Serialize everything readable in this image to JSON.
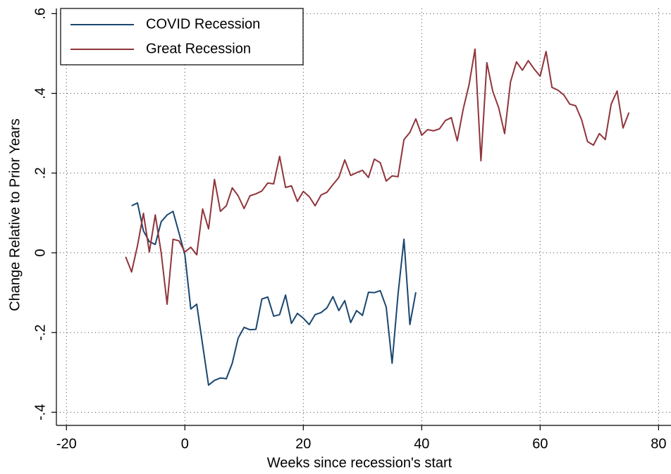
{
  "chart_data": {
    "type": "line",
    "xlabel": "Weeks since recession's start",
    "ylabel": "Change Relative to Prior Years",
    "xlim": [
      -21.7,
      82.1
    ],
    "ylim": [
      -0.433,
      0.613
    ],
    "xticks": [
      -20,
      0,
      20,
      40,
      60,
      80
    ],
    "yticks": [
      {
        "value": 0.6,
        "label": ".6"
      },
      {
        "value": 0.4,
        "label": ".4"
      },
      {
        "value": 0.2,
        "label": ".2"
      },
      0,
      {
        "value": -0.2,
        "label": "-.2"
      },
      {
        "value": -0.4,
        "label": "-.4"
      }
    ],
    "grid": true,
    "legend": "top-left",
    "series": [
      {
        "name": "COVID Recession",
        "color": "#1a476f",
        "x": [
          -9,
          -8,
          -7,
          -6,
          -5,
          -4,
          -3,
          -2,
          -1,
          0,
          1,
          2,
          3,
          4,
          5,
          6,
          7,
          8,
          9,
          10,
          11,
          12,
          13,
          14,
          15,
          16,
          17,
          18,
          19,
          20,
          21,
          22,
          23,
          24,
          25,
          26,
          27,
          28,
          29,
          30,
          31,
          32,
          33,
          34,
          35,
          36,
          37,
          38,
          39
        ],
        "values": [
          0.118,
          0.125,
          0.055,
          0.028,
          0.021,
          0.078,
          0.095,
          0.104,
          0.05,
          -0.005,
          -0.141,
          -0.129,
          -0.231,
          -0.332,
          -0.32,
          -0.314,
          -0.316,
          -0.277,
          -0.214,
          -0.187,
          -0.193,
          -0.192,
          -0.116,
          -0.111,
          -0.159,
          -0.155,
          -0.106,
          -0.177,
          -0.152,
          -0.164,
          -0.18,
          -0.155,
          -0.15,
          -0.138,
          -0.11,
          -0.145,
          -0.12,
          -0.175,
          -0.145,
          -0.157,
          -0.099,
          -0.1,
          -0.095,
          -0.136,
          -0.277,
          -0.104,
          0.034,
          -0.18,
          -0.099
        ]
      },
      {
        "name": "Great Recession",
        "color": "#90353b",
        "x": [
          -10,
          -9,
          -8,
          -7,
          -6,
          -5,
          -4,
          -3,
          -2,
          -1,
          0,
          1,
          2,
          3,
          4,
          5,
          6,
          7,
          8,
          9,
          10,
          11,
          12,
          13,
          14,
          15,
          16,
          17,
          18,
          19,
          20,
          21,
          22,
          23,
          24,
          25,
          26,
          27,
          28,
          29,
          30,
          31,
          32,
          33,
          34,
          35,
          36,
          37,
          38,
          39,
          40,
          41,
          42,
          43,
          44,
          45,
          46,
          47,
          48,
          49,
          50,
          51,
          52,
          53,
          54,
          55,
          56,
          57,
          58,
          59,
          60,
          61,
          62,
          63,
          64,
          65,
          66,
          67,
          68,
          69,
          70,
          71,
          72,
          73,
          74,
          75
        ],
        "values": [
          -0.01,
          -0.048,
          0.018,
          0.099,
          0.002,
          0.095,
          0,
          -0.129,
          0.034,
          0.03,
          0.002,
          0.014,
          -0.005,
          0.11,
          0.06,
          0.184,
          0.104,
          0.118,
          0.163,
          0.143,
          0.111,
          0.143,
          0.148,
          0.155,
          0.175,
          0.173,
          0.242,
          0.164,
          0.168,
          0.129,
          0.154,
          0.141,
          0.118,
          0.145,
          0.152,
          0.171,
          0.189,
          0.233,
          0.194,
          0.201,
          0.207,
          0.189,
          0.235,
          0.226,
          0.18,
          0.193,
          0.191,
          0.284,
          0.302,
          0.336,
          0.295,
          0.309,
          0.306,
          0.311,
          0.332,
          0.339,
          0.281,
          0.36,
          0.422,
          0.511,
          0.231,
          0.477,
          0.405,
          0.364,
          0.299,
          0.429,
          0.479,
          0.458,
          0.482,
          0.461,
          0.443,
          0.505,
          0.415,
          0.408,
          0.396,
          0.373,
          0.369,
          0.334,
          0.279,
          0.27,
          0.299,
          0.284,
          0.373,
          0.406,
          0.313,
          0.352
        ]
      }
    ]
  }
}
